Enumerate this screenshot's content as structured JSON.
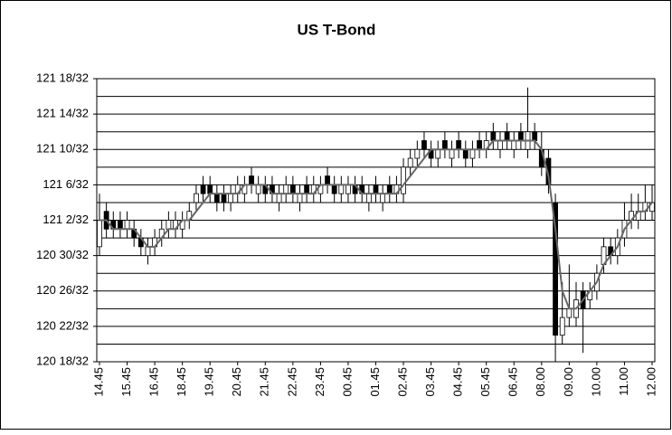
{
  "chart_data": {
    "type": "candlestick",
    "title": "US T-Bond",
    "categories": [
      "14.45",
      null,
      null,
      null,
      "15.45",
      null,
      null,
      null,
      "16.45",
      null,
      null,
      null,
      "18.45",
      null,
      null,
      null,
      "19.45",
      null,
      null,
      null,
      "20.45",
      null,
      null,
      null,
      "21.45",
      null,
      null,
      null,
      "22.45",
      null,
      null,
      null,
      "23.45",
      null,
      null,
      null,
      "00.45",
      null,
      null,
      null,
      "01.45",
      null,
      null,
      null,
      "02.45",
      null,
      null,
      null,
      "03.45",
      null,
      null,
      null,
      "04.45",
      null,
      null,
      null,
      "05.45",
      null,
      null,
      null,
      "06.45",
      null,
      null,
      null,
      "08.00",
      null,
      null,
      null,
      "09.00",
      null,
      null,
      null,
      "10.00",
      null,
      null,
      null,
      "11.00",
      null,
      null,
      null,
      "12.00"
    ],
    "open": [
      120.96875,
      121.09375,
      121.0625,
      121.0625,
      121.03125,
      121.03125,
      121,
      120.9375,
      120.96875,
      121,
      121.03125,
      121.03125,
      121.03125,
      121.0625,
      121.125,
      121.1875,
      121.1875,
      121.15625,
      121.15625,
      121.125,
      121.15625,
      121.15625,
      121.21875,
      121.15625,
      121.1875,
      121.1875,
      121.125,
      121.15625,
      121.1875,
      121.125,
      121.1875,
      121.15625,
      121.15625,
      121.21875,
      121.1875,
      121.15625,
      121.15625,
      121.1875,
      121.1875,
      121.125,
      121.1875,
      121.125,
      121.1875,
      121.15625,
      121.15625,
      121.25,
      121.28125,
      121.34375,
      121.3125,
      121.28125,
      121.34375,
      121.28125,
      121.34375,
      121.3125,
      121.28125,
      121.34375,
      121.3125,
      121.375,
      121.3125,
      121.375,
      121.3125,
      121.375,
      121.3125,
      121.375,
      121.3125,
      121.28125,
      121.125,
      120.65625,
      120.71875,
      120.71875,
      120.8125,
      120.78125,
      120.8125,
      120.90625,
      120.96875,
      120.9375,
      121,
      121.0625,
      121.0625,
      121.09375,
      121.09375
    ],
    "high": [
      121.15625,
      121.125,
      121.09375,
      121.09375,
      121.09375,
      121.0625,
      121.03125,
      121,
      121.03125,
      121.0625,
      121.09375,
      121.09375,
      121.09375,
      121.125,
      121.1875,
      121.21875,
      121.21875,
      121.1875,
      121.1875,
      121.1875,
      121.21875,
      121.21875,
      121.25,
      121.21875,
      121.21875,
      121.21875,
      121.1875,
      121.21875,
      121.21875,
      121.1875,
      121.21875,
      121.21875,
      121.21875,
      121.25,
      121.21875,
      121.21875,
      121.21875,
      121.21875,
      121.21875,
      121.1875,
      121.21875,
      121.1875,
      121.21875,
      121.21875,
      121.28125,
      121.3125,
      121.34375,
      121.375,
      121.34375,
      121.34375,
      121.375,
      121.34375,
      121.375,
      121.34375,
      121.34375,
      121.375,
      121.375,
      121.40625,
      121.375,
      121.40625,
      121.375,
      121.40625,
      121.53125,
      121.40625,
      121.375,
      121.3125,
      121.15625,
      120.84375,
      120.90625,
      120.84375,
      120.84375,
      120.84375,
      120.90625,
      121,
      121,
      121.03125,
      121.125,
      121.15625,
      121.15625,
      121.1875,
      121.1875
    ],
    "low": [
      120.9375,
      121,
      121,
      121,
      121,
      120.96875,
      120.9375,
      120.90625,
      120.9375,
      120.96875,
      121,
      121,
      121,
      121.03125,
      121.09375,
      121.125,
      121.125,
      121.09375,
      121.09375,
      121.09375,
      121.125,
      121.125,
      121.15625,
      121.125,
      121.125,
      121.125,
      121.09375,
      121.125,
      121.125,
      121.09375,
      121.125,
      121.125,
      121.125,
      121.15625,
      121.125,
      121.125,
      121.125,
      121.125,
      121.125,
      121.09375,
      121.125,
      121.09375,
      121.125,
      121.125,
      121.125,
      121.21875,
      121.25,
      121.28125,
      121.25,
      121.25,
      121.28125,
      121.25,
      121.28125,
      121.25,
      121.25,
      121.28125,
      121.28125,
      121.3125,
      121.28125,
      121.3125,
      121.28125,
      121.3125,
      121.28125,
      121.3125,
      121.21875,
      121.15625,
      120.5625,
      120.625,
      120.6875,
      120.6875,
      120.59375,
      120.75,
      120.78125,
      120.875,
      120.90625,
      120.90625,
      120.96875,
      121.03125,
      121.03125,
      121.0625,
      121.0625
    ],
    "close": [
      121.0625,
      121.03125,
      121.03125,
      121.03125,
      121.0625,
      121,
      120.96875,
      120.96875,
      121,
      121.03125,
      121.0625,
      121.0625,
      121.0625,
      121.09375,
      121.15625,
      121.15625,
      121.15625,
      121.125,
      121.125,
      121.15625,
      121.1875,
      121.1875,
      121.1875,
      121.1875,
      121.15625,
      121.15625,
      121.15625,
      121.1875,
      121.15625,
      121.15625,
      121.15625,
      121.1875,
      121.1875,
      121.1875,
      121.15625,
      121.1875,
      121.1875,
      121.15625,
      121.15625,
      121.15625,
      121.15625,
      121.15625,
      121.15625,
      121.1875,
      121.25,
      121.28125,
      121.3125,
      121.3125,
      121.28125,
      121.3125,
      121.3125,
      121.3125,
      121.3125,
      121.28125,
      121.3125,
      121.3125,
      121.34375,
      121.34375,
      121.34375,
      121.34375,
      121.34375,
      121.34375,
      121.375,
      121.34375,
      121.25,
      121.1875,
      120.65625,
      120.71875,
      120.75,
      120.78125,
      120.75,
      120.8125,
      120.875,
      120.96875,
      120.9375,
      121,
      121.0625,
      121.09375,
      121.09375,
      121.125,
      121.125
    ],
    "up_color": "#ffffff",
    "down_color": "#000000",
    "line": {
      "color": "#666666",
      "values": [
        121.0625,
        121.0625,
        121.03125,
        121.03125,
        121.03125,
        121.03125,
        121,
        120.96875,
        120.96875,
        121,
        121.03125,
        121.03125,
        121.0625,
        121.0625,
        121.09375,
        121.125,
        121.15625,
        121.15625,
        121.15625,
        121.15625,
        121.15625,
        121.1875,
        121.1875,
        121.1875,
        121.1875,
        121.15625,
        121.15625,
        121.15625,
        121.15625,
        121.15625,
        121.15625,
        121.15625,
        121.1875,
        121.1875,
        121.1875,
        121.1875,
        121.1875,
        121.1875,
        121.15625,
        121.15625,
        121.15625,
        121.15625,
        121.15625,
        121.15625,
        121.1875,
        121.21875,
        121.25,
        121.28125,
        121.3125,
        121.3125,
        121.3125,
        121.3125,
        121.3125,
        121.3125,
        121.3125,
        121.3125,
        121.3125,
        121.34375,
        121.34375,
        121.34375,
        121.34375,
        121.34375,
        121.34375,
        121.34375,
        121.3125,
        121.21875,
        121.03125,
        120.8125,
        120.75,
        120.75,
        120.78125,
        120.8125,
        120.84375,
        120.90625,
        120.9375,
        120.96875,
        121.03125,
        121.0625,
        121.09375,
        121.09375,
        121.125
      ]
    },
    "ylim": [
      120.5625,
      121.5625
    ],
    "yticks": [
      {
        "value": 120.5625,
        "label": "120 18/32"
      },
      {
        "value": 120.6875,
        "label": "120 22/32"
      },
      {
        "value": 120.8125,
        "label": "120 26/32"
      },
      {
        "value": 120.9375,
        "label": "120 30/32"
      },
      {
        "value": 121.0625,
        "label": "121 2/32"
      },
      {
        "value": 121.1875,
        "label": "121 6/32"
      },
      {
        "value": 121.3125,
        "label": "121 10/32"
      },
      {
        "value": 121.4375,
        "label": "121 14/32"
      },
      {
        "value": 121.5625,
        "label": "121 18/32"
      }
    ],
    "minor_yticks": [
      120.625,
      120.75,
      120.875,
      121,
      121.125,
      121.25,
      121.375,
      121.5
    ],
    "grid": true
  }
}
